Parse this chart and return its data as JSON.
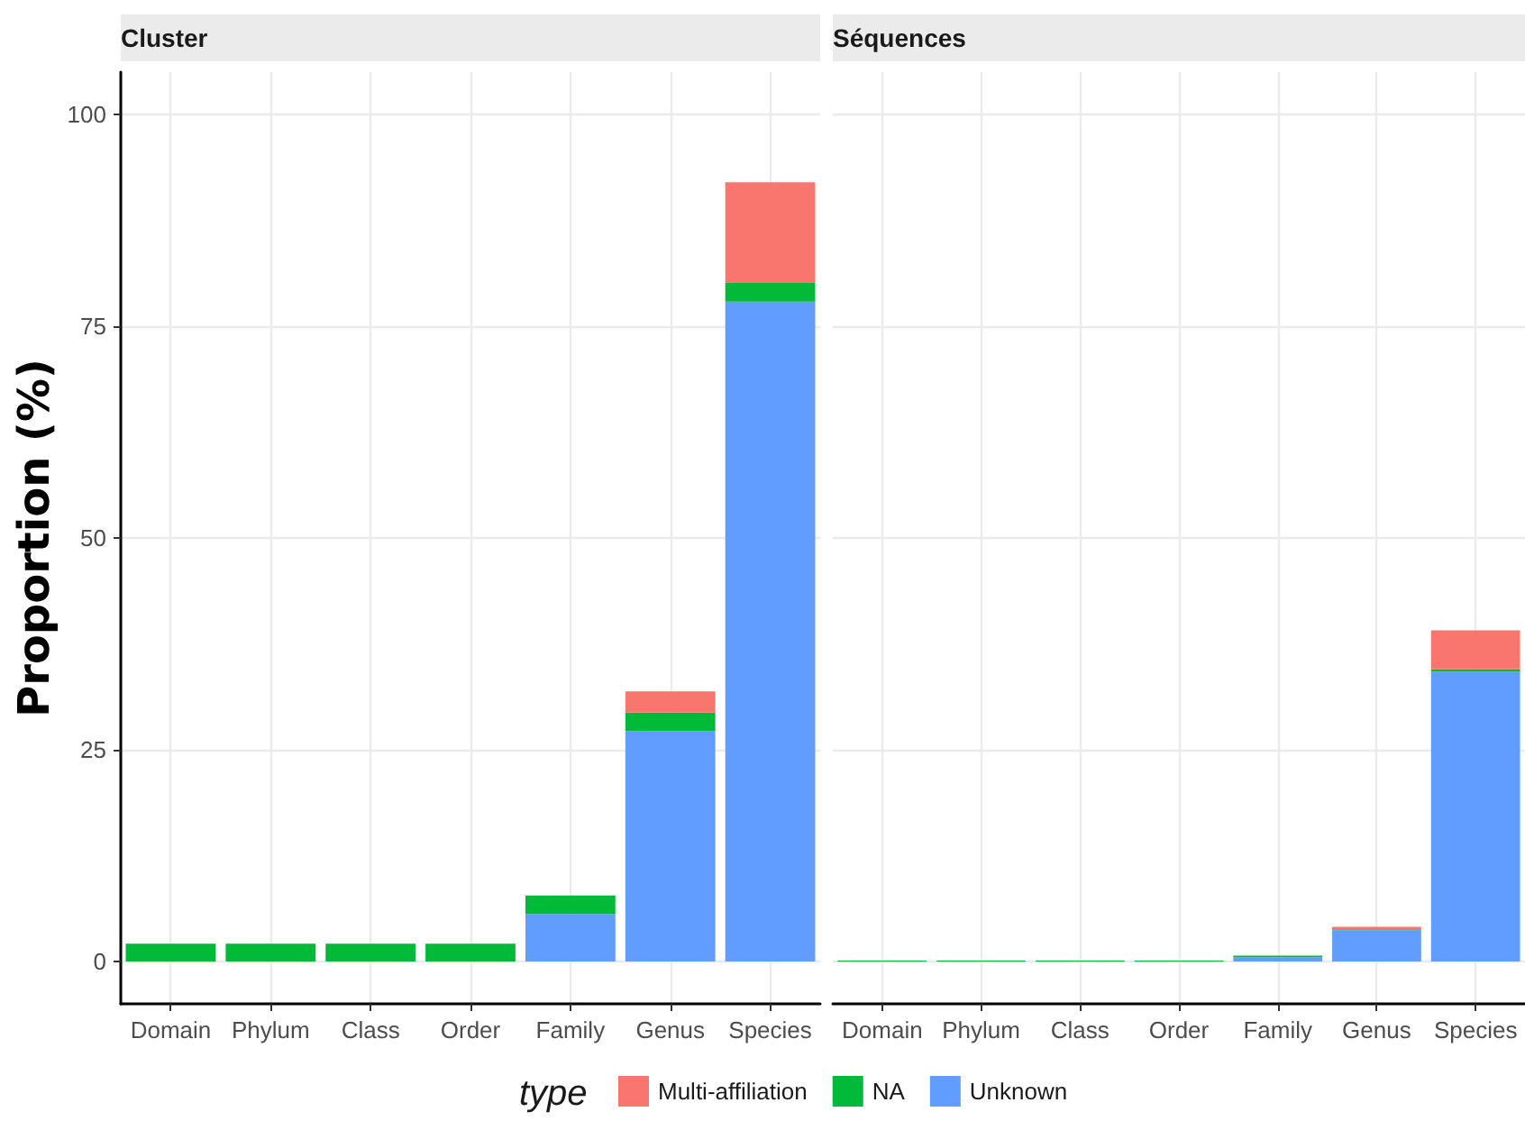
{
  "chart_data": [
    {
      "type": "bar",
      "title": "Cluster",
      "ylabel": "Proportion (%)",
      "legend_title": "type",
      "categories": [
        "Domain",
        "Phylum",
        "Class",
        "Order",
        "Family",
        "Genus",
        "Species"
      ],
      "stacked": true,
      "series": [
        {
          "name": "Unknown",
          "color": "#619cff",
          "values": [
            0,
            0,
            0,
            0,
            5.6,
            27.2,
            77.9
          ]
        },
        {
          "name": "NA",
          "color": "#00ba38",
          "values": [
            2.1,
            2.1,
            2.1,
            2.1,
            2.2,
            2.2,
            2.2
          ]
        },
        {
          "name": "Multi-affiliation",
          "color": "#f8766d",
          "values": [
            0,
            0,
            0,
            0,
            0,
            2.5,
            11.9
          ]
        }
      ],
      "ylim": [
        -5,
        105
      ],
      "yticks": [
        0,
        25,
        50,
        75,
        100
      ],
      "grid": true,
      "legend": "bottom"
    },
    {
      "type": "bar",
      "title": "Séquences",
      "categories": [
        "Domain",
        "Phylum",
        "Class",
        "Order",
        "Family",
        "Genus",
        "Species"
      ],
      "stacked": true,
      "series": [
        {
          "color": "#619cff",
          "values": [
            0,
            0,
            0,
            0,
            0.5,
            3.7,
            34.2
          ]
        },
        {
          "color": "#00ba38",
          "values": [
            0.1,
            0.1,
            0.1,
            0.1,
            0.2,
            0.1,
            0.3
          ]
        },
        {
          "color": "#f8766d",
          "values": [
            0,
            0,
            0,
            0,
            0,
            0.3,
            4.6
          ]
        }
      ],
      "ylim": [
        -5,
        105
      ],
      "yticks": [
        0,
        25,
        50,
        75,
        100
      ],
      "grid": true,
      "tick_labels": "x"
    }
  ]
}
